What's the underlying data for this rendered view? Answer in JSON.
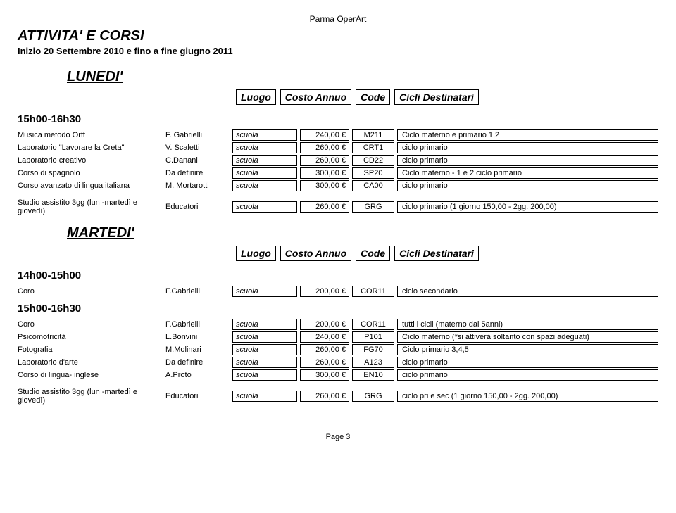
{
  "org": "Parma OperArt",
  "main_title": "ATTIVITA' E CORSI",
  "subtitle": "Inizio 20 Settembre 2010 e fino a fine giugno 2011",
  "col_headers": {
    "luogo": "Luogo",
    "costo": "Costo Annuo",
    "code": "Code",
    "dest": "Cicli Destinatari"
  },
  "lunedi": {
    "label": "LUNEDI'",
    "slot1": {
      "label": "15h00-16h30"
    },
    "rows": [
      {
        "name": "Musica metodo Orff",
        "teacher": "F. Gabrielli",
        "luogo": "scuola",
        "costo": "240,00 €",
        "code": "M211",
        "dest": "Ciclo materno e primario 1,2"
      },
      {
        "name": "Laboratorio \"Lavorare la Creta\"",
        "teacher": "V. Scaletti",
        "luogo": "scuola",
        "costo": "260,00 €",
        "code": "CRT1",
        "dest": "ciclo primario"
      },
      {
        "name": "Laboratorio creativo",
        "teacher": "C.Danani",
        "luogo": "scuola",
        "costo": "260,00 €",
        "code": "CD22",
        "dest": "ciclo primario"
      },
      {
        "name": "Corso di spagnolo",
        "teacher": "Da definire",
        "luogo": "scuola",
        "costo": "300,00 €",
        "code": "SP20",
        "dest": "Ciclo materno - 1 e 2 ciclo primario"
      },
      {
        "name": "Corso avanzato di lingua italiana",
        "teacher": "M. Mortarotti",
        "luogo": "scuola",
        "costo": "300,00 €",
        "code": "CA00",
        "dest": "ciclo primario"
      }
    ],
    "studio": {
      "name": "Studio assistito 3gg (lun -martedì e giovedì)",
      "teacher": "Educatori",
      "luogo": "scuola",
      "costo": "260,00 €",
      "code": "GRG",
      "dest": "ciclo primario (1 giorno 150,00 - 2gg. 200,00)"
    }
  },
  "martedi": {
    "label": "MARTEDI'",
    "slot1": {
      "label": "14h00-15h00"
    },
    "slot1_rows": [
      {
        "name": "Coro",
        "teacher": "F.Gabrielli",
        "luogo": "scuola",
        "costo": "200,00 €",
        "code": "COR11",
        "dest": "ciclo secondario"
      }
    ],
    "slot2": {
      "label": "15h00-16h30"
    },
    "slot2_rows": [
      {
        "name": "Coro",
        "teacher": "F.Gabrielli",
        "luogo": "scuola",
        "costo": "200,00 €",
        "code": "COR11",
        "dest": "tutti i cicli (materno dai 5anni)"
      },
      {
        "name": "Psicomotricità",
        "teacher": "L.Bonvini",
        "luogo": "scuola",
        "costo": "240,00 €",
        "code": "P101",
        "dest": "Ciclo materno (*si attiverà soltanto con spazi adeguati)"
      },
      {
        "name": "Fotografia",
        "teacher": "M.Molinari",
        "luogo": "scuola",
        "costo": "260,00 €",
        "code": "FG70",
        "dest": "Ciclo primario 3,4,5"
      },
      {
        "name": "Laboratorio d'arte",
        "teacher": "Da definire",
        "luogo": "scuola",
        "costo": "260,00 €",
        "code": "A123",
        "dest": "ciclo primario"
      },
      {
        "name": "Corso di lingua- inglese",
        "teacher": "A.Proto",
        "luogo": "scuola",
        "costo": "300,00 €",
        "code": "EN10",
        "dest": "ciclo primario"
      }
    ],
    "studio": {
      "name": "Studio assistito 3gg (lun -martedì e giovedì)",
      "teacher": "Educatori",
      "luogo": "scuola",
      "costo": "260,00 €",
      "code": "GRG",
      "dest": "ciclo pri e sec (1 giorno 150,00 - 2gg. 200,00)"
    }
  },
  "footer": "Page 3"
}
